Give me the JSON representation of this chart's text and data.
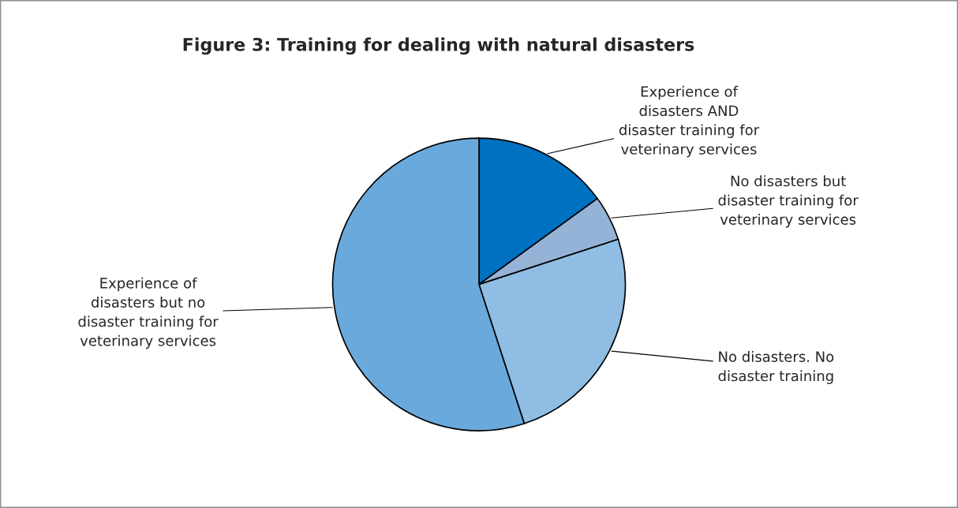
{
  "chart_data": {
    "type": "pie",
    "title": "Figure 3: Training for dealing with natural disasters",
    "categories": [
      "Experience of\ndisasters AND\ndisaster training for\nveterinary services",
      "No disasters but\ndisaster training for\nveterinary services",
      "No disasters. No\ndisaster training",
      "Experience of\ndisasters but no\ndisaster training for\nveterinary services"
    ],
    "values": [
      15,
      5,
      25,
      55
    ],
    "colors": [
      "#0070c0",
      "#95b3d7",
      "#8fbde3",
      "#6aa9dc"
    ],
    "legend": false
  }
}
